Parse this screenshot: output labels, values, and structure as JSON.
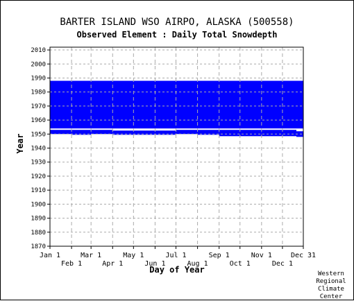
{
  "chart_data": {
    "type": "heatmap",
    "title": "BARTER ISLAND WSO AIRPO, ALASKA   (500558)",
    "subtitle": "Observed Element : Daily Total Snowdepth",
    "xlabel": "Day of Year",
    "ylabel": "Year",
    "xlim": [
      1,
      365
    ],
    "ylim": [
      1870,
      2012
    ],
    "x_ticks": [
      {
        "label": "Jan 1",
        "day": 1,
        "row": "upper"
      },
      {
        "label": "Feb 1",
        "day": 32,
        "row": "lower"
      },
      {
        "label": "Mar 1",
        "day": 60,
        "row": "upper"
      },
      {
        "label": "Apr 1",
        "day": 91,
        "row": "lower"
      },
      {
        "label": "May 1",
        "day": 121,
        "row": "upper"
      },
      {
        "label": "Jun 1",
        "day": 152,
        "row": "lower"
      },
      {
        "label": "Jul 1",
        "day": 182,
        "row": "upper"
      },
      {
        "label": "Aug 1",
        "day": 213,
        "row": "lower"
      },
      {
        "label": "Sep 1",
        "day": 244,
        "row": "upper"
      },
      {
        "label": "Oct 1",
        "day": 274,
        "row": "lower"
      },
      {
        "label": "Nov 1",
        "day": 305,
        "row": "upper"
      },
      {
        "label": "Dec 1",
        "day": 335,
        "row": "lower"
      },
      {
        "label": "Dec 31",
        "day": 365,
        "row": "upper"
      }
    ],
    "y_ticks": [
      2010,
      2000,
      1990,
      1980,
      1970,
      1960,
      1950,
      1940,
      1930,
      1920,
      1910,
      1900,
      1890,
      1880,
      1870
    ],
    "grid": true,
    "data_color": "#0000ff",
    "data_blocks": [
      {
        "day_start": 1,
        "day_end": 365,
        "year_start": 1954,
        "year_end": 1988
      },
      {
        "day_start": 1,
        "day_end": 32,
        "year_start": 1950,
        "year_end": 1953
      },
      {
        "day_start": 32,
        "day_end": 60,
        "year_start": 1949.5,
        "year_end": 1953
      },
      {
        "day_start": 60,
        "day_end": 91,
        "year_start": 1950,
        "year_end": 1953
      },
      {
        "day_start": 91,
        "day_end": 182,
        "year_start": 1949.5,
        "year_end": 1952.5
      },
      {
        "day_start": 182,
        "day_end": 213,
        "year_start": 1950,
        "year_end": 1953
      },
      {
        "day_start": 213,
        "day_end": 244,
        "year_start": 1949.5,
        "year_end": 1953
      },
      {
        "day_start": 244,
        "day_end": 305,
        "year_start": 1948.5,
        "year_end": 1953
      },
      {
        "day_start": 305,
        "day_end": 355,
        "year_start": 1948.5,
        "year_end": 1953
      },
      {
        "day_start": 355,
        "day_end": 365,
        "year_start": 1948,
        "year_end": 1952
      }
    ]
  },
  "credit": "Western\nRegional\nClimate\nCenter"
}
